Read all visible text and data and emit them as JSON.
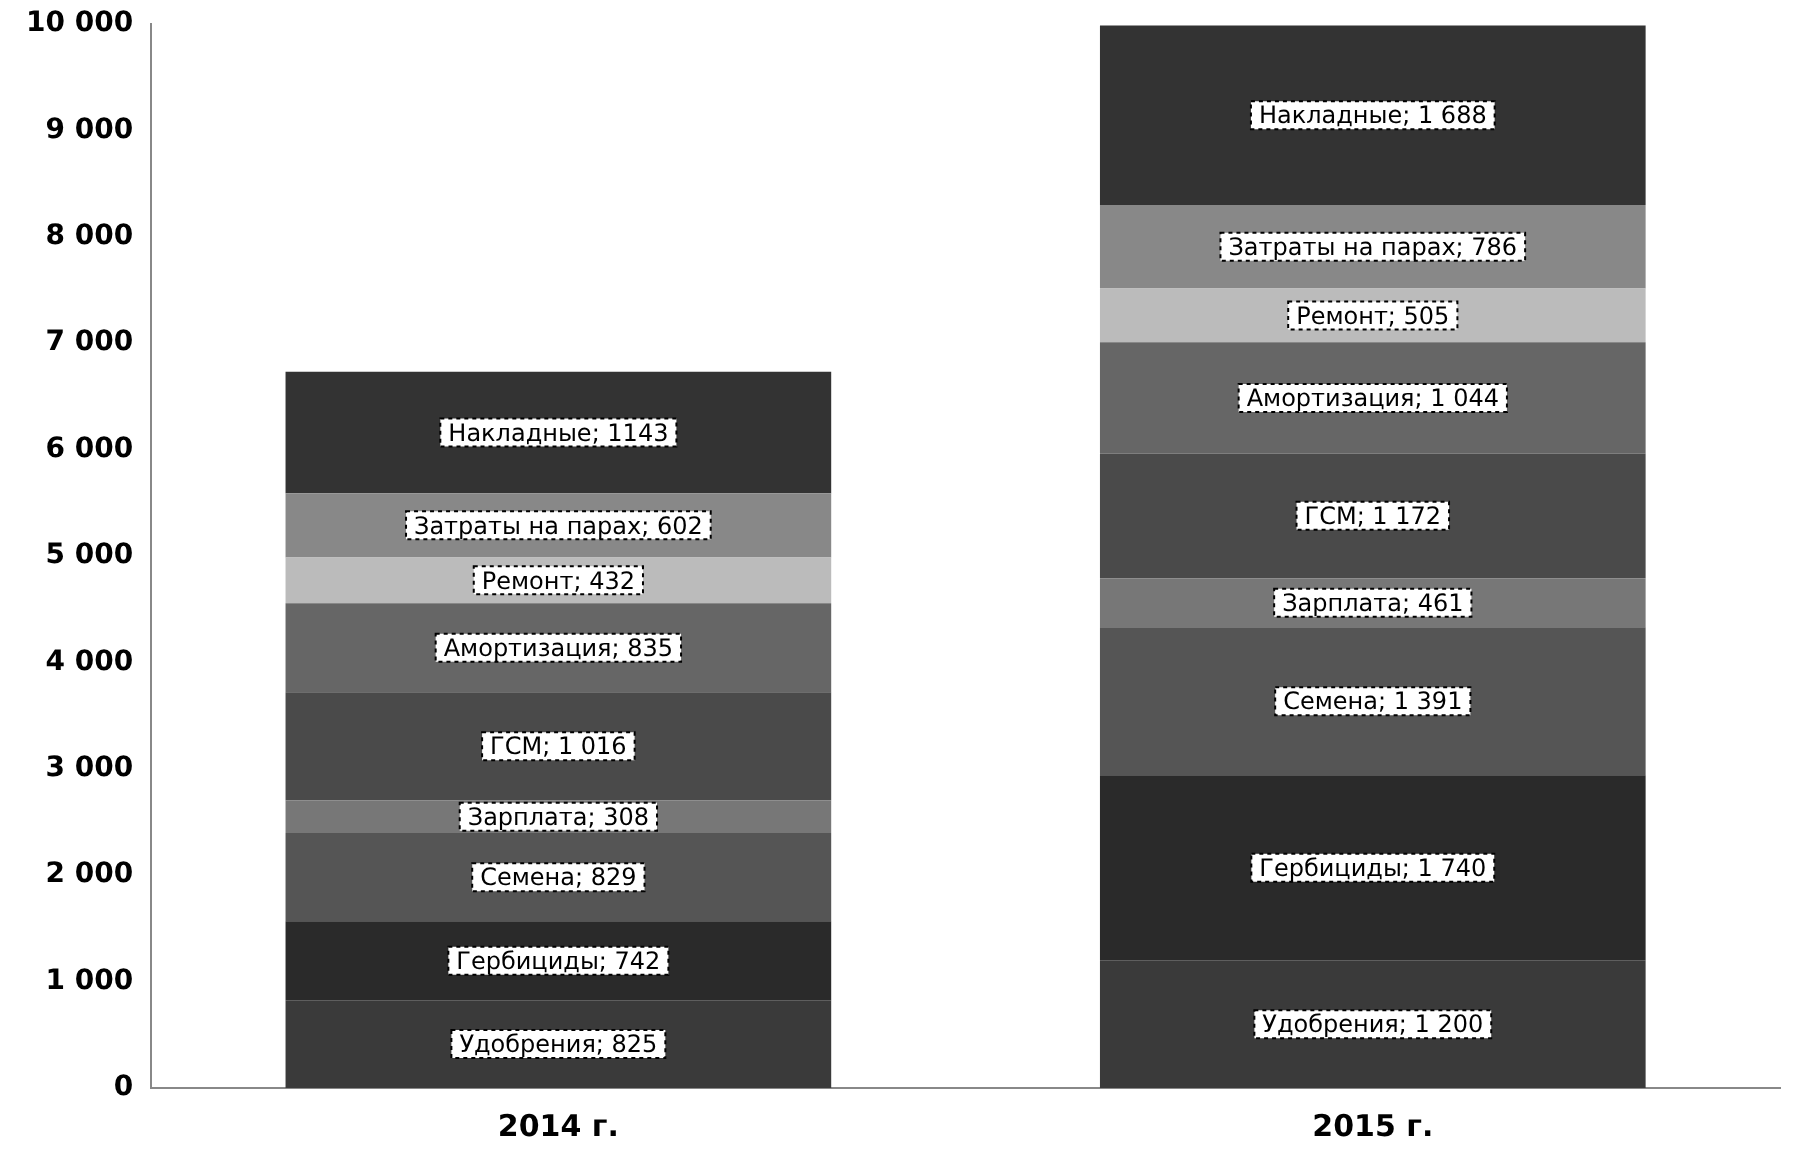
{
  "chart_data": {
    "type": "bar",
    "stacked": true,
    "categories": [
      "2014 г.",
      "2015 г."
    ],
    "ylim": [
      0,
      10000
    ],
    "yticks": [
      {
        "value": 0,
        "label": "0"
      },
      {
        "value": 1000,
        "label": "1 000"
      },
      {
        "value": 2000,
        "label": "2 000"
      },
      {
        "value": 3000,
        "label": "3 000"
      },
      {
        "value": 4000,
        "label": "4 000"
      },
      {
        "value": 5000,
        "label": "5 000"
      },
      {
        "value": 6000,
        "label": "6 000"
      },
      {
        "value": 7000,
        "label": "7 000"
      },
      {
        "value": 8000,
        "label": "8 000"
      },
      {
        "value": 9000,
        "label": "9 000"
      },
      {
        "value": 10000,
        "label": "10 000"
      }
    ],
    "grid": false,
    "legend": false,
    "series": [
      {
        "color": "#3a3a3a",
        "values": [
          825,
          1200
        ],
        "value_labels": [
          "Удобрения; 825",
          "Удобрения; 1 200"
        ]
      },
      {
        "color": "#2a2a2a",
        "values": [
          742,
          1740
        ],
        "value_labels": [
          "Гербициды; 742",
          "Гербициды; 1 740"
        ]
      },
      {
        "color": "#555555",
        "values": [
          829,
          1391
        ],
        "value_labels": [
          "Семена; 829",
          "Семена; 1 391"
        ]
      },
      {
        "color": "#777777",
        "values": [
          308,
          461
        ],
        "value_labels": [
          "Зарплата; 308",
          "Зарплата; 461"
        ]
      },
      {
        "color": "#4a4a4a",
        "values": [
          1016,
          1172
        ],
        "value_labels": [
          "ГСМ; 1 016",
          "ГСМ; 1 172"
        ]
      },
      {
        "color": "#666666",
        "values": [
          835,
          1044
        ],
        "value_labels": [
          "Амортизация; 835",
          "Амортизация; 1 044"
        ]
      },
      {
        "color": "#bbbbbb",
        "values": [
          432,
          505
        ],
        "value_labels": [
          "Ремонт; 432",
          "Ремонт; 505"
        ]
      },
      {
        "color": "#888888",
        "values": [
          602,
          786
        ],
        "value_labels": [
          "Затраты на парах; 602",
          "Затраты на парах; 786"
        ]
      },
      {
        "color": "#333333",
        "values": [
          1143,
          1688
        ],
        "value_labels": [
          "Накладные; 1143",
          "Накладные; 1 688"
        ]
      }
    ]
  }
}
